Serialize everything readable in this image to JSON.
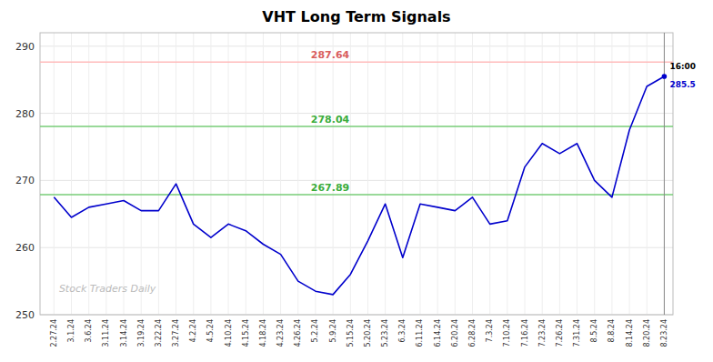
{
  "chart_data": {
    "type": "line",
    "title": "VHT Long Term Signals",
    "categories": [
      "2.27.24",
      "3.1.24",
      "3.6.24",
      "3.11.24",
      "3.14.24",
      "3.19.24",
      "3.22.24",
      "3.27.24",
      "4.2.24",
      "4.5.24",
      "4.10.24",
      "4.15.24",
      "4.18.24",
      "4.23.24",
      "4.26.24",
      "5.2.24",
      "5.9.24",
      "5.15.24",
      "5.20.24",
      "5.23.24",
      "6.3.24",
      "6.11.24",
      "6.14.24",
      "6.20.24",
      "6.28.24",
      "7.3.24",
      "7.10.24",
      "7.16.24",
      "7.23.24",
      "7.26.24",
      "7.31.24",
      "8.5.24",
      "8.8.24",
      "8.14.24",
      "8.20.24",
      "8.23.24"
    ],
    "values": [
      267.5,
      264.5,
      266.0,
      266.5,
      267.0,
      265.5,
      265.5,
      269.5,
      263.5,
      261.5,
      263.5,
      262.5,
      260.5,
      259.0,
      255.0,
      253.5,
      253.0,
      256.0,
      261.0,
      266.5,
      258.5,
      266.5,
      266.0,
      265.5,
      267.5,
      263.5,
      264.0,
      272.0,
      275.5,
      274.0,
      275.5,
      270.0,
      267.5,
      277.5,
      284.0,
      285.5
    ],
    "color": "#0000cc",
    "reference_lines": [
      {
        "value": 287.64,
        "color": "#ffbbbb"
      },
      {
        "value": 278.04,
        "color": "#77cc77"
      },
      {
        "value": 267.89,
        "color": "#77cc77"
      }
    ],
    "last_value": 285.5,
    "annotations": [
      "16:00"
    ],
    "watermark": "Stock Traders Daily",
    "ylim": [
      250,
      292
    ],
    "yticks": [
      250,
      260,
      270,
      280,
      290
    ],
    "grid": true
  }
}
